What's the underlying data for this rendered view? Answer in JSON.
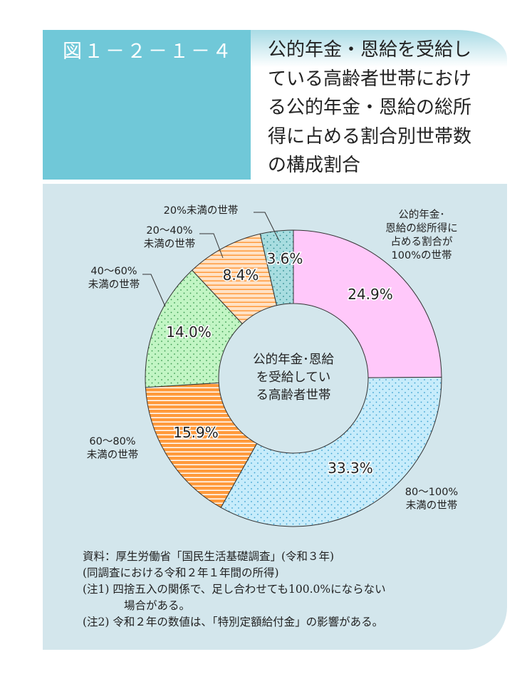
{
  "header": {
    "figure_number": "図１－２－１－４",
    "title": "公的年金・恩給を受給している高齢者世帯における公的年金・恩給の総所得に占める割合別世帯数の構成割合"
  },
  "chart_data": {
    "type": "pie",
    "donut": true,
    "title": "公的年金・恩給を受給している高齢者世帯における公的年金・恩給の総所得に占める割合別世帯数の構成割合",
    "center_label": [
      "公的年金･恩給",
      "を受給してい",
      "る高齢者世帯"
    ],
    "slices": [
      {
        "label": [
          "公的年金･",
          "恩給の総所得に",
          "占める割合が",
          "100%の世帯"
        ],
        "value": 24.9,
        "value_label": "24.9%",
        "color": "#ffc8fa",
        "pattern": "solid"
      },
      {
        "label": [
          "80～100%",
          "未満の世帯"
        ],
        "value": 33.3,
        "value_label": "33.3%",
        "color": "#c7ecfb",
        "pattern": "dots",
        "pattern_color": "#3aa0d0"
      },
      {
        "label": [
          "60～80%",
          "未満の世帯"
        ],
        "value": 15.9,
        "value_label": "15.9%",
        "color": "#ff9a3c",
        "pattern": "stripes",
        "pattern_color": "#ffffff"
      },
      {
        "label": [
          "40～60%",
          "未満の世帯"
        ],
        "value": 14.0,
        "value_label": "14.0%",
        "color": "#c2f5c4",
        "pattern": "dots",
        "pattern_color": "#3a9a50"
      },
      {
        "label": [
          "20～40%",
          "未満の世帯"
        ],
        "value": 8.4,
        "value_label": "8.4%",
        "color": "#ffe2c6",
        "pattern": "stripes",
        "pattern_color": "#ff9a3c"
      },
      {
        "label": [
          "20%未満の世帯"
        ],
        "value": 3.6,
        "value_label": "3.6%",
        "color": "#a8dde0",
        "pattern": "dots",
        "pattern_color": "#2b8a90"
      }
    ]
  },
  "notes": [
    "資料：厚生労働省「国民生活基礎調査」(令和３年)",
    "(同調査における令和２年１年間の所得)",
    "(注1)  四捨五入の関係で、足し合わせても100.0%にならない",
    "場合がある。",
    "(注2)  令和２年の数値は、「特別定額給付金」の影響がある。"
  ]
}
